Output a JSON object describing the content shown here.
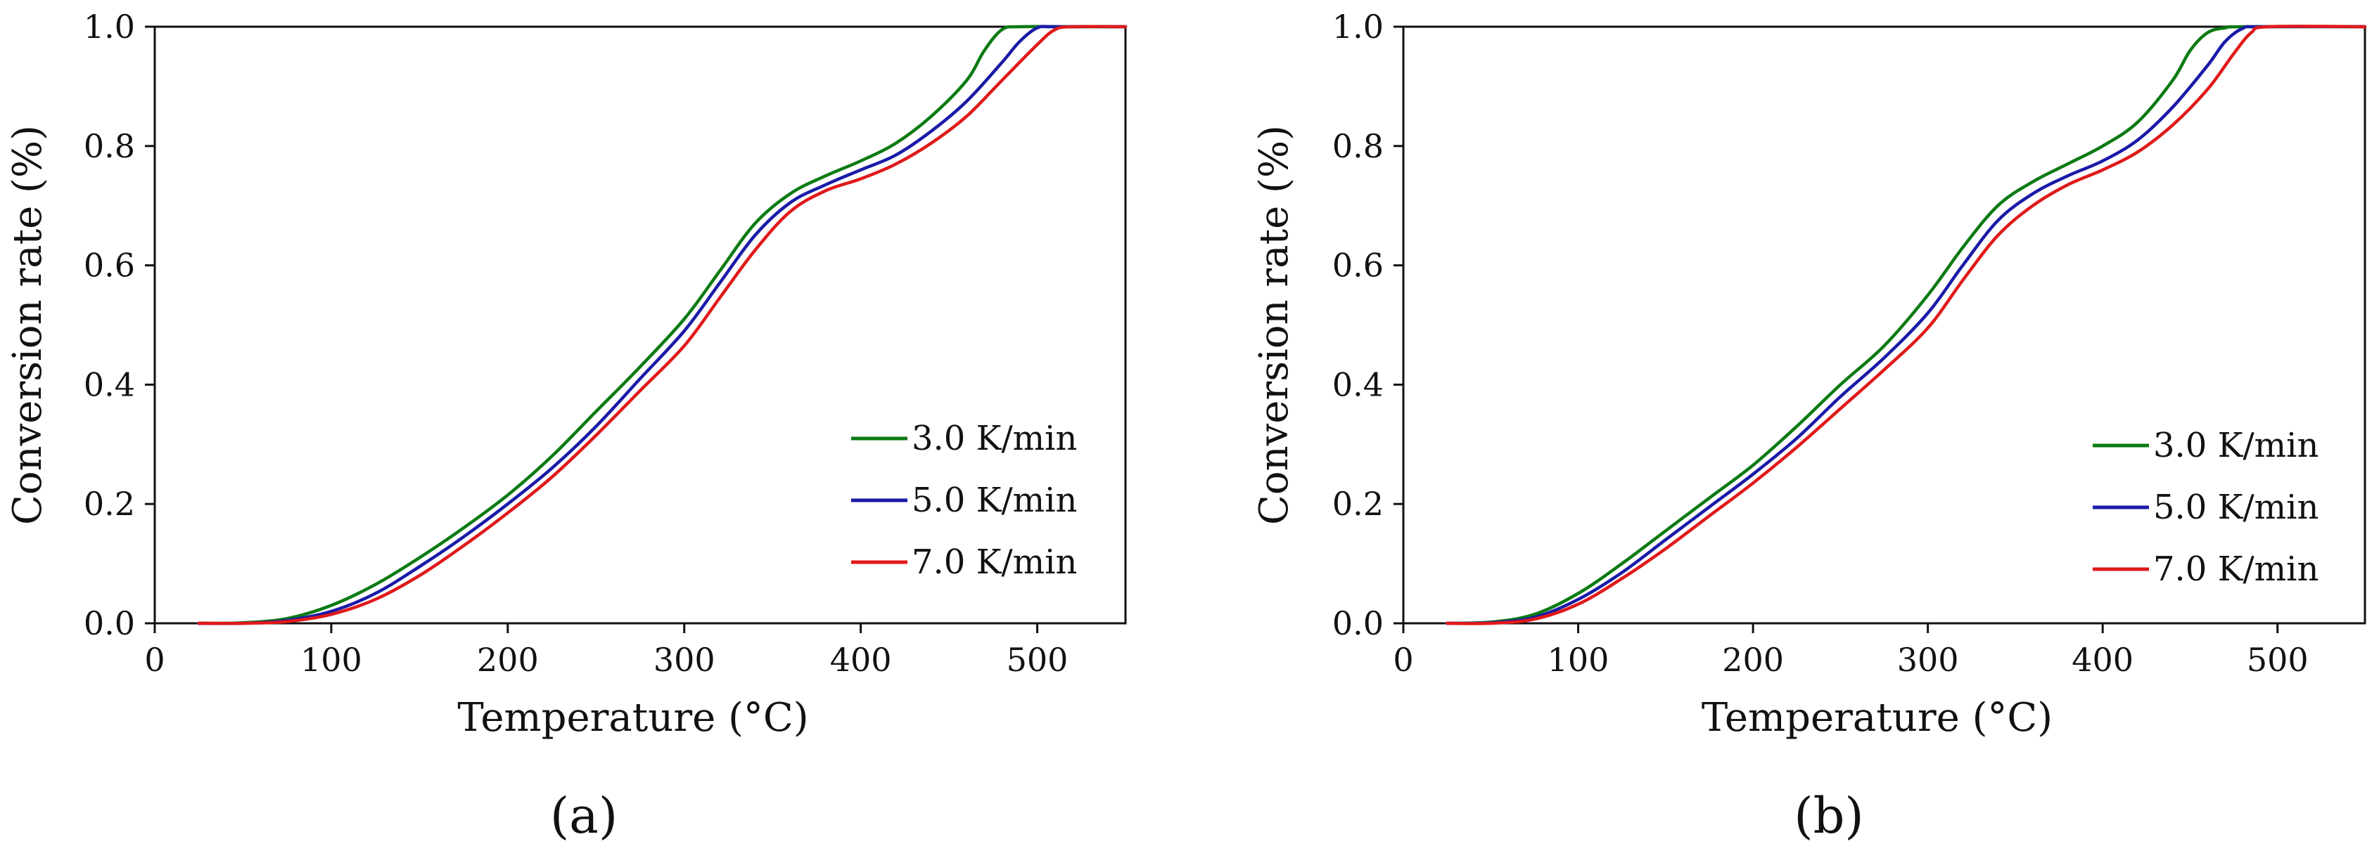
{
  "chart_data": [
    {
      "type": "line",
      "panel_label": "(a)",
      "xlabel": "Temperature (°C)",
      "ylabel": "Conversion rate (%)",
      "xlim": [
        0,
        550
      ],
      "ylim": [
        0,
        1.0
      ],
      "x_ticks": [
        0,
        100,
        200,
        300,
        400,
        500
      ],
      "x_tick_labels": [
        "0",
        "100",
        "200",
        "300",
        "400",
        "500"
      ],
      "y_ticks": [
        0,
        0.2,
        0.4,
        0.6,
        0.8,
        1.0
      ],
      "y_tick_labels": [
        "0.0",
        "0.2",
        "0.4",
        "0.6",
        "0.8",
        "1.0"
      ],
      "grid": false,
      "legend_position": "bottom-right",
      "series": [
        {
          "name": "3.0 K/min",
          "color": "#0b7a12",
          "points": [
            [
              25,
              0
            ],
            [
              50,
              0.001
            ],
            [
              75,
              0.008
            ],
            [
              100,
              0.03
            ],
            [
              125,
              0.065
            ],
            [
              150,
              0.11
            ],
            [
              175,
              0.16
            ],
            [
              200,
              0.215
            ],
            [
              225,
              0.28
            ],
            [
              250,
              0.355
            ],
            [
              275,
              0.43
            ],
            [
              300,
              0.51
            ],
            [
              320,
              0.59
            ],
            [
              340,
              0.67
            ],
            [
              360,
              0.72
            ],
            [
              380,
              0.75
            ],
            [
              400,
              0.775
            ],
            [
              420,
              0.805
            ],
            [
              440,
              0.85
            ],
            [
              460,
              0.91
            ],
            [
              470,
              0.96
            ],
            [
              480,
              0.995
            ],
            [
              490,
              1.0
            ],
            [
              520,
              1.0
            ],
            [
              550,
              1.0
            ]
          ]
        },
        {
          "name": "5.0 K/min",
          "color": "#1a1aa8",
          "points": [
            [
              25,
              0
            ],
            [
              50,
              0
            ],
            [
              75,
              0.005
            ],
            [
              100,
              0.02
            ],
            [
              125,
              0.05
            ],
            [
              150,
              0.095
            ],
            [
              175,
              0.145
            ],
            [
              200,
              0.2
            ],
            [
              225,
              0.26
            ],
            [
              250,
              0.33
            ],
            [
              275,
              0.41
            ],
            [
              300,
              0.49
            ],
            [
              320,
              0.57
            ],
            [
              340,
              0.65
            ],
            [
              360,
              0.705
            ],
            [
              380,
              0.735
            ],
            [
              400,
              0.76
            ],
            [
              420,
              0.785
            ],
            [
              440,
              0.825
            ],
            [
              460,
              0.875
            ],
            [
              480,
              0.94
            ],
            [
              490,
              0.975
            ],
            [
              500,
              0.998
            ],
            [
              510,
              1.0
            ],
            [
              550,
              1.0
            ]
          ]
        },
        {
          "name": "7.0 K/min",
          "color": "#e01919",
          "points": [
            [
              25,
              0
            ],
            [
              50,
              0
            ],
            [
              75,
              0.003
            ],
            [
              100,
              0.015
            ],
            [
              125,
              0.04
            ],
            [
              150,
              0.08
            ],
            [
              175,
              0.13
            ],
            [
              200,
              0.185
            ],
            [
              225,
              0.245
            ],
            [
              250,
              0.315
            ],
            [
              275,
              0.39
            ],
            [
              300,
              0.465
            ],
            [
              320,
              0.545
            ],
            [
              340,
              0.625
            ],
            [
              360,
              0.69
            ],
            [
              380,
              0.725
            ],
            [
              400,
              0.745
            ],
            [
              420,
              0.77
            ],
            [
              440,
              0.805
            ],
            [
              460,
              0.85
            ],
            [
              480,
              0.91
            ],
            [
              500,
              0.97
            ],
            [
              510,
              0.995
            ],
            [
              520,
              1.0
            ],
            [
              550,
              1.0
            ]
          ]
        }
      ]
    },
    {
      "type": "line",
      "panel_label": "(b)",
      "xlabel": "Temperature (°C)",
      "ylabel": "Conversion rate (%)",
      "xlim": [
        0,
        550
      ],
      "ylim": [
        0,
        1.0
      ],
      "x_ticks": [
        0,
        100,
        200,
        300,
        400,
        500
      ],
      "x_tick_labels": [
        "0",
        "100",
        "200",
        "300",
        "400",
        "500"
      ],
      "y_ticks": [
        0,
        0.2,
        0.4,
        0.6,
        0.8,
        1.0
      ],
      "y_tick_labels": [
        "0.0",
        "0.2",
        "0.4",
        "0.6",
        "0.8",
        "1.0"
      ],
      "grid": false,
      "legend_position": "bottom-right",
      "series": [
        {
          "name": "3.0 K/min",
          "color": "#0b7a12",
          "points": [
            [
              25,
              0
            ],
            [
              50,
              0.002
            ],
            [
              75,
              0.015
            ],
            [
              100,
              0.05
            ],
            [
              125,
              0.1
            ],
            [
              150,
              0.155
            ],
            [
              175,
              0.21
            ],
            [
              200,
              0.265
            ],
            [
              225,
              0.33
            ],
            [
              250,
              0.4
            ],
            [
              275,
              0.465
            ],
            [
              300,
              0.55
            ],
            [
              320,
              0.63
            ],
            [
              340,
              0.7
            ],
            [
              360,
              0.74
            ],
            [
              380,
              0.77
            ],
            [
              400,
              0.8
            ],
            [
              420,
              0.84
            ],
            [
              440,
              0.91
            ],
            [
              450,
              0.96
            ],
            [
              460,
              0.99
            ],
            [
              470,
              0.998
            ],
            [
              480,
              1.0
            ],
            [
              550,
              1.0
            ]
          ]
        },
        {
          "name": "5.0 K/min",
          "color": "#1a1aa8",
          "points": [
            [
              25,
              0
            ],
            [
              50,
              0.001
            ],
            [
              75,
              0.01
            ],
            [
              100,
              0.04
            ],
            [
              125,
              0.085
            ],
            [
              150,
              0.14
            ],
            [
              175,
              0.195
            ],
            [
              200,
              0.25
            ],
            [
              225,
              0.31
            ],
            [
              250,
              0.38
            ],
            [
              275,
              0.445
            ],
            [
              300,
              0.52
            ],
            [
              320,
              0.6
            ],
            [
              340,
              0.675
            ],
            [
              360,
              0.72
            ],
            [
              380,
              0.75
            ],
            [
              400,
              0.775
            ],
            [
              420,
              0.81
            ],
            [
              440,
              0.865
            ],
            [
              460,
              0.935
            ],
            [
              470,
              0.975
            ],
            [
              480,
              0.997
            ],
            [
              490,
              1.0
            ],
            [
              550,
              1.0
            ]
          ]
        },
        {
          "name": "7.0 K/min",
          "color": "#e01919",
          "points": [
            [
              25,
              0
            ],
            [
              50,
              0
            ],
            [
              75,
              0.007
            ],
            [
              100,
              0.032
            ],
            [
              125,
              0.075
            ],
            [
              150,
              0.125
            ],
            [
              175,
              0.18
            ],
            [
              200,
              0.235
            ],
            [
              225,
              0.295
            ],
            [
              250,
              0.36
            ],
            [
              275,
              0.425
            ],
            [
              300,
              0.495
            ],
            [
              320,
              0.575
            ],
            [
              340,
              0.65
            ],
            [
              360,
              0.7
            ],
            [
              380,
              0.735
            ],
            [
              400,
              0.76
            ],
            [
              420,
              0.79
            ],
            [
              440,
              0.835
            ],
            [
              460,
              0.895
            ],
            [
              475,
              0.955
            ],
            [
              485,
              0.99
            ],
            [
              495,
              1.0
            ],
            [
              550,
              1.0
            ]
          ]
        }
      ]
    }
  ]
}
